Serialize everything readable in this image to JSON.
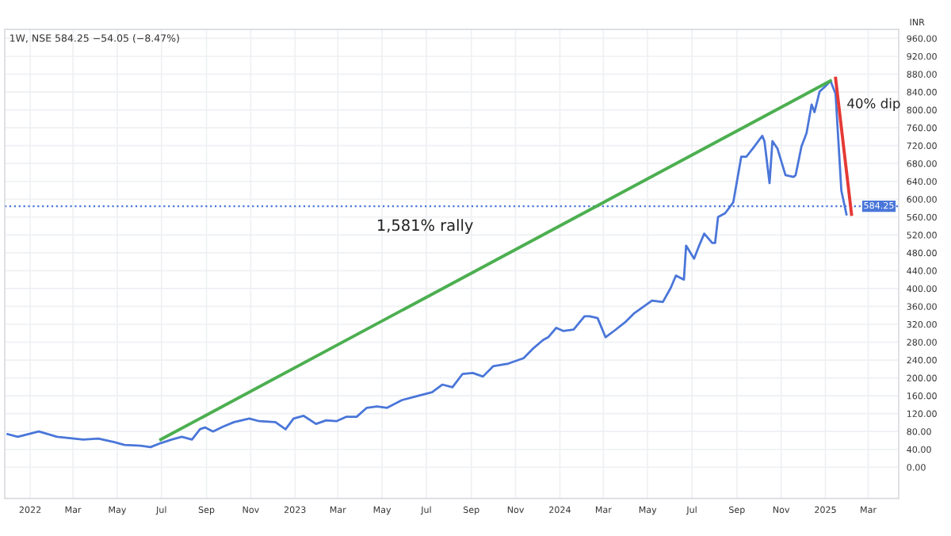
{
  "chart_data": {
    "type": "line",
    "subtitle": "1W, NSE 584.25 −54.05 (−8.47%)",
    "ylabel": "INR",
    "annotations": [
      "1,581% rally",
      "40% dip"
    ],
    "series": [
      {
        "color": "#4a76d9",
        "x": [
          "2021-12-01",
          "2021-12-15",
          "2022-01-13",
          "2022-02-07",
          "2022-03-15",
          "2022-04-05",
          "2022-04-27",
          "2022-05-11",
          "2022-06-02",
          "2022-06-16",
          "2022-06-30",
          "2022-07-15",
          "2022-07-29",
          "2022-08-12",
          "2022-08-23",
          "2022-08-30",
          "2022-09-10",
          "2022-09-24",
          "2022-10-09",
          "2022-10-30",
          "2022-11-13",
          "2022-12-05",
          "2022-12-19",
          "2022-12-30",
          "2023-01-13",
          "2023-01-30",
          "2023-02-13",
          "2023-02-27",
          "2023-03-13",
          "2023-03-27",
          "2023-04-10",
          "2023-04-24",
          "2023-05-08",
          "2023-05-28",
          "2023-06-18",
          "2023-07-09",
          "2023-07-23",
          "2023-08-06",
          "2023-08-20",
          "2023-09-03",
          "2023-09-17",
          "2023-10-01",
          "2023-10-22",
          "2023-11-05",
          "2023-11-12",
          "2023-11-26",
          "2023-12-09",
          "2023-12-16",
          "2023-12-27",
          "2024-01-06",
          "2024-01-20",
          "2024-02-04",
          "2024-02-11",
          "2024-02-22",
          "2024-03-04",
          "2024-03-18",
          "2024-04-01",
          "2024-04-12",
          "2024-04-19",
          "2024-05-07",
          "2024-05-22",
          "2024-06-02",
          "2024-06-09",
          "2024-06-20",
          "2024-06-23",
          "2024-07-04",
          "2024-07-11",
          "2024-07-18",
          "2024-07-29",
          "2024-08-02",
          "2024-08-06",
          "2024-08-16",
          "2024-08-27",
          "2024-09-07",
          "2024-09-14",
          "2024-09-25",
          "2024-10-06",
          "2024-10-09",
          "2024-10-16",
          "2024-10-20",
          "2024-10-27",
          "2024-11-07",
          "2024-11-18",
          "2024-11-21",
          "2024-11-29",
          "2024-12-06",
          "2024-12-13",
          "2024-12-17",
          "2024-12-24",
          "2025-01-01",
          "2025-01-08",
          "2025-01-15",
          "2025-01-23",
          "2025-01-30"
        ],
        "values": [
          74,
          68,
          80,
          68,
          62,
          64,
          56,
          50,
          48,
          45,
          54,
          62,
          68,
          62,
          85,
          89,
          80,
          91,
          101,
          109,
          103,
          101,
          85,
          109,
          115,
          97,
          105,
          103,
          113,
          113,
          133,
          136,
          133,
          150,
          159,
          168,
          185,
          179,
          209,
          211,
          203,
          226,
          232,
          240,
          244,
          267,
          285,
          291,
          312,
          305,
          308,
          338,
          338,
          334,
          291,
          308,
          326,
          344,
          352,
          373,
          370,
          402,
          429,
          420,
          496,
          467,
          496,
          523,
          502,
          502,
          560,
          569,
          593,
          695,
          695,
          718,
          742,
          730,
          636,
          730,
          713,
          654,
          650,
          654,
          718,
          748,
          812,
          795,
          841,
          853,
          865,
          836,
          619,
          566
        ]
      },
      {
        "color": "#4caf50",
        "x": [
          "2022-06-30",
          "2025-01-08"
        ],
        "values": [
          62,
          865
        ]
      },
      {
        "color": "#e53935",
        "x": [
          "2025-01-15",
          "2025-02-06"
        ],
        "values": [
          871,
          566
        ]
      }
    ],
    "ref_lines": [
      {
        "axis": "y",
        "value": 584.25,
        "label": "584.25",
        "color": "#4a76d9",
        "line_style": "dotted"
      }
    ],
    "xlim": [
      "2021-11-27",
      "2025-04-12"
    ],
    "xticks": [
      {
        "value": "2022-01-01",
        "label": "2022"
      },
      {
        "value": "2022-03-01",
        "label": "Mar"
      },
      {
        "value": "2022-05-01",
        "label": "May"
      },
      {
        "value": "2022-07-01",
        "label": "Jul"
      },
      {
        "value": "2022-09-01",
        "label": "Sep"
      },
      {
        "value": "2022-11-01",
        "label": "Nov"
      },
      {
        "value": "2023-01-01",
        "label": "2023"
      },
      {
        "value": "2023-03-01",
        "label": "Mar"
      },
      {
        "value": "2023-05-01",
        "label": "May"
      },
      {
        "value": "2023-07-01",
        "label": "Jul"
      },
      {
        "value": "2023-09-01",
        "label": "Sep"
      },
      {
        "value": "2023-11-01",
        "label": "Nov"
      },
      {
        "value": "2024-01-01",
        "label": "2024"
      },
      {
        "value": "2024-03-01",
        "label": "Mar"
      },
      {
        "value": "2024-05-01",
        "label": "May"
      },
      {
        "value": "2024-07-01",
        "label": "Jul"
      },
      {
        "value": "2024-09-01",
        "label": "Sep"
      },
      {
        "value": "2024-11-01",
        "label": "Nov"
      },
      {
        "value": "2025-01-01",
        "label": "2025"
      },
      {
        "value": "2025-03-01",
        "label": "Mar"
      }
    ],
    "ylim": [
      -70,
      980
    ],
    "yticks": [
      {
        "value": 0,
        "label": "0.00"
      },
      {
        "value": 40,
        "label": "40.00"
      },
      {
        "value": 80,
        "label": "80.00"
      },
      {
        "value": 120,
        "label": "120.00"
      },
      {
        "value": 160,
        "label": "160.00"
      },
      {
        "value": 200,
        "label": "200.00"
      },
      {
        "value": 240,
        "label": "240.00"
      },
      {
        "value": 280,
        "label": "280.00"
      },
      {
        "value": 320,
        "label": "320.00"
      },
      {
        "value": 360,
        "label": "360.00"
      },
      {
        "value": 400,
        "label": "400.00"
      },
      {
        "value": 440,
        "label": "440.00"
      },
      {
        "value": 480,
        "label": "480.00"
      },
      {
        "value": 520,
        "label": "520.00"
      },
      {
        "value": 560,
        "label": "560.00"
      },
      {
        "value": 600,
        "label": "600.00"
      },
      {
        "value": 640,
        "label": "640.00"
      },
      {
        "value": 680,
        "label": "680.00"
      },
      {
        "value": 720,
        "label": "720.00"
      },
      {
        "value": 760,
        "label": "760.00"
      },
      {
        "value": 800,
        "label": "800.00"
      },
      {
        "value": 840,
        "label": "840.00"
      },
      {
        "value": 880,
        "label": "880.00"
      },
      {
        "value": 920,
        "label": "920.00"
      },
      {
        "value": 960,
        "label": "960.00"
      }
    ],
    "grid": true,
    "marker": "none",
    "line_style": "solid"
  }
}
